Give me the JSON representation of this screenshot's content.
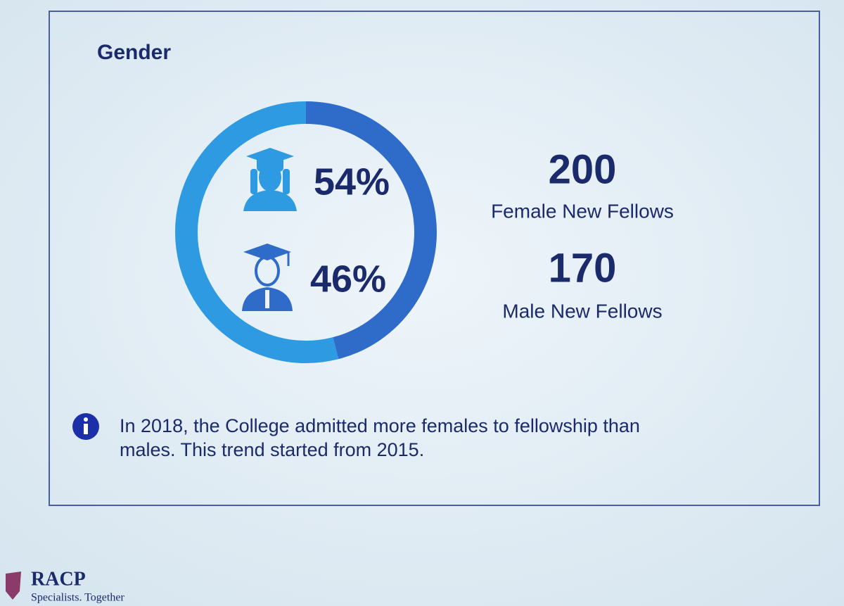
{
  "chart_data": {
    "type": "donut",
    "title": "Gender",
    "values": [
      54,
      46
    ],
    "value_labels": [
      "54%",
      "46%"
    ],
    "colors": [
      "#2d9ae2",
      "#2f6bc9"
    ]
  },
  "stats": [
    {
      "value": 200,
      "label": "Female New Fellows"
    },
    {
      "value": 170,
      "label": "Male New Fellows"
    }
  ],
  "note": [
    "In 2018, the College admitted more females to fellowship than",
    "males. This trend started from 2015."
  ],
  "footer": {
    "brand": "RACP",
    "tagline": "Specialists. Together"
  }
}
